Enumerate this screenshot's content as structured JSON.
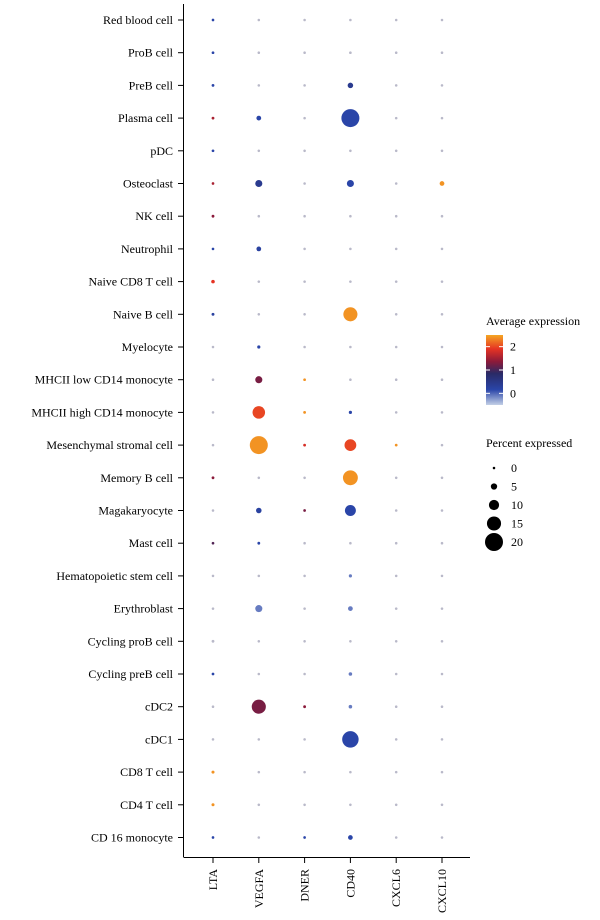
{
  "chart_data": {
    "type": "dotplot",
    "genes": [
      "LTA",
      "VEGFA",
      "DNER",
      "CD40",
      "CXCL6",
      "CXCL10"
    ],
    "cell_types": [
      "Red blood cell",
      "ProB cell",
      "PreB cell",
      "Plasma cell",
      "pDC",
      "Osteoclast",
      "NK cell",
      "Neutrophil",
      "Naive CD8 T cell",
      "Naive B cell",
      "Myelocyte",
      "MHCII low CD14 monocyte",
      "MHCII high CD14 monocyte",
      "Mesenchymal stromal cell",
      "Memory B cell",
      "Magakaryocyte",
      "Mast cell",
      "Hematopoietic stem cell",
      "Erythroblast",
      "Cycling proB cell",
      "Cycling preB cell",
      "cDC2",
      "cDC1",
      "CD8 T cell",
      "CD4 T cell",
      "CD 16 monocyte"
    ],
    "points": [
      {
        "cell": "Red blood cell",
        "gene": "LTA",
        "pct": 0.3,
        "avg": 0.0
      },
      {
        "cell": "Red blood cell",
        "gene": "VEGFA",
        "pct": 0.2,
        "avg": -0.3
      },
      {
        "cell": "Red blood cell",
        "gene": "DNER",
        "pct": 0.2,
        "avg": -0.3
      },
      {
        "cell": "Red blood cell",
        "gene": "CD40",
        "pct": 0.2,
        "avg": -0.3
      },
      {
        "cell": "Red blood cell",
        "gene": "CXCL6",
        "pct": 0.2,
        "avg": -0.3
      },
      {
        "cell": "Red blood cell",
        "gene": "CXCL10",
        "pct": 0.2,
        "avg": -0.3
      },
      {
        "cell": "ProB cell",
        "gene": "LTA",
        "pct": 0.4,
        "avg": 0.0
      },
      {
        "cell": "ProB cell",
        "gene": "VEGFA",
        "pct": 0.2,
        "avg": -0.3
      },
      {
        "cell": "ProB cell",
        "gene": "DNER",
        "pct": 0.2,
        "avg": -0.3
      },
      {
        "cell": "ProB cell",
        "gene": "CD40",
        "pct": 0.3,
        "avg": -0.2
      },
      {
        "cell": "ProB cell",
        "gene": "CXCL6",
        "pct": 0.2,
        "avg": -0.3
      },
      {
        "cell": "ProB cell",
        "gene": "CXCL10",
        "pct": 0.2,
        "avg": -0.3
      },
      {
        "cell": "PreB cell",
        "gene": "LTA",
        "pct": 0.5,
        "avg": 0.0
      },
      {
        "cell": "PreB cell",
        "gene": "VEGFA",
        "pct": 0.2,
        "avg": -0.3
      },
      {
        "cell": "PreB cell",
        "gene": "DNER",
        "pct": 0.2,
        "avg": -0.3
      },
      {
        "cell": "PreB cell",
        "gene": "CD40",
        "pct": 4,
        "avg": 0.3
      },
      {
        "cell": "PreB cell",
        "gene": "CXCL6",
        "pct": 0.2,
        "avg": -0.3
      },
      {
        "cell": "PreB cell",
        "gene": "CXCL10",
        "pct": 0.2,
        "avg": -0.3
      },
      {
        "cell": "Plasma cell",
        "gene": "LTA",
        "pct": 0.5,
        "avg": 1.5
      },
      {
        "cell": "Plasma cell",
        "gene": "VEGFA",
        "pct": 3,
        "avg": 0.0
      },
      {
        "cell": "Plasma cell",
        "gene": "DNER",
        "pct": 0.2,
        "avg": -0.3
      },
      {
        "cell": "Plasma cell",
        "gene": "CD40",
        "pct": 20,
        "avg": 0.0
      },
      {
        "cell": "Plasma cell",
        "gene": "CXCL6",
        "pct": 0.2,
        "avg": -0.3
      },
      {
        "cell": "Plasma cell",
        "gene": "CXCL10",
        "pct": 0.2,
        "avg": -0.3
      },
      {
        "cell": "pDC",
        "gene": "LTA",
        "pct": 0.4,
        "avg": 0.0
      },
      {
        "cell": "pDC",
        "gene": "VEGFA",
        "pct": 0.2,
        "avg": -0.3
      },
      {
        "cell": "pDC",
        "gene": "DNER",
        "pct": 0.2,
        "avg": -0.3
      },
      {
        "cell": "pDC",
        "gene": "CD40",
        "pct": 0.2,
        "avg": -0.3
      },
      {
        "cell": "pDC",
        "gene": "CXCL6",
        "pct": 0.2,
        "avg": -0.3
      },
      {
        "cell": "pDC",
        "gene": "CXCL10",
        "pct": 0.2,
        "avg": -0.3
      },
      {
        "cell": "Osteoclast",
        "gene": "LTA",
        "pct": 0.3,
        "avg": 1.5
      },
      {
        "cell": "Osteoclast",
        "gene": "VEGFA",
        "pct": 6,
        "avg": 0.3
      },
      {
        "cell": "Osteoclast",
        "gene": "DNER",
        "pct": 0.2,
        "avg": -0.3
      },
      {
        "cell": "Osteoclast",
        "gene": "CD40",
        "pct": 6,
        "avg": 0.0
      },
      {
        "cell": "Osteoclast",
        "gene": "CXCL6",
        "pct": 0.2,
        "avg": -0.3
      },
      {
        "cell": "Osteoclast",
        "gene": "CXCL10",
        "pct": 3,
        "avg": 2.4
      },
      {
        "cell": "NK cell",
        "gene": "LTA",
        "pct": 0.5,
        "avg": 1.3
      },
      {
        "cell": "NK cell",
        "gene": "VEGFA",
        "pct": 0.2,
        "avg": -0.3
      },
      {
        "cell": "NK cell",
        "gene": "DNER",
        "pct": 0.2,
        "avg": -0.3
      },
      {
        "cell": "NK cell",
        "gene": "CD40",
        "pct": 0.2,
        "avg": -0.3
      },
      {
        "cell": "NK cell",
        "gene": "CXCL6",
        "pct": 0.2,
        "avg": -0.3
      },
      {
        "cell": "NK cell",
        "gene": "CXCL10",
        "pct": 0.2,
        "avg": -0.3
      },
      {
        "cell": "Neutrophil",
        "gene": "LTA",
        "pct": 0.3,
        "avg": 0.0
      },
      {
        "cell": "Neutrophil",
        "gene": "VEGFA",
        "pct": 3,
        "avg": 0.1
      },
      {
        "cell": "Neutrophil",
        "gene": "DNER",
        "pct": 0.2,
        "avg": -0.3
      },
      {
        "cell": "Neutrophil",
        "gene": "CD40",
        "pct": 0.2,
        "avg": -0.3
      },
      {
        "cell": "Neutrophil",
        "gene": "CXCL6",
        "pct": 0.2,
        "avg": -0.3
      },
      {
        "cell": "Neutrophil",
        "gene": "CXCL10",
        "pct": 0.2,
        "avg": -0.3
      },
      {
        "cell": "Naive CD8 T cell",
        "gene": "LTA",
        "pct": 1.5,
        "avg": 1.9
      },
      {
        "cell": "Naive CD8 T cell",
        "gene": "VEGFA",
        "pct": 0.2,
        "avg": -0.3
      },
      {
        "cell": "Naive CD8 T cell",
        "gene": "DNER",
        "pct": 0.2,
        "avg": -0.3
      },
      {
        "cell": "Naive CD8 T cell",
        "gene": "CD40",
        "pct": 0.2,
        "avg": -0.3
      },
      {
        "cell": "Naive CD8 T cell",
        "gene": "CXCL6",
        "pct": 0.2,
        "avg": -0.3
      },
      {
        "cell": "Naive CD8 T cell",
        "gene": "CXCL10",
        "pct": 0.2,
        "avg": -0.3
      },
      {
        "cell": "Naive B cell",
        "gene": "LTA",
        "pct": 0.7,
        "avg": 0.1
      },
      {
        "cell": "Naive B cell",
        "gene": "VEGFA",
        "pct": 0.2,
        "avg": -0.3
      },
      {
        "cell": "Naive B cell",
        "gene": "DNER",
        "pct": 0.2,
        "avg": -0.3
      },
      {
        "cell": "Naive B cell",
        "gene": "CD40",
        "pct": 15,
        "avg": 2.4
      },
      {
        "cell": "Naive B cell",
        "gene": "CXCL6",
        "pct": 0.2,
        "avg": -0.3
      },
      {
        "cell": "Naive B cell",
        "gene": "CXCL10",
        "pct": 0.2,
        "avg": -0.3
      },
      {
        "cell": "Myelocyte",
        "gene": "LTA",
        "pct": 0.2,
        "avg": -0.3
      },
      {
        "cell": "Myelocyte",
        "gene": "VEGFA",
        "pct": 1,
        "avg": 0.0
      },
      {
        "cell": "Myelocyte",
        "gene": "DNER",
        "pct": 0.2,
        "avg": -0.3
      },
      {
        "cell": "Myelocyte",
        "gene": "CD40",
        "pct": 0.2,
        "avg": -0.3
      },
      {
        "cell": "Myelocyte",
        "gene": "CXCL6",
        "pct": 0.2,
        "avg": -0.3
      },
      {
        "cell": "Myelocyte",
        "gene": "CXCL10",
        "pct": 0.2,
        "avg": -0.3
      },
      {
        "cell": "MHCII low CD14 monocyte",
        "gene": "LTA",
        "pct": 0.2,
        "avg": -0.3
      },
      {
        "cell": "MHCII low CD14 monocyte",
        "gene": "VEGFA",
        "pct": 6,
        "avg": 1.2
      },
      {
        "cell": "MHCII low CD14 monocyte",
        "gene": "DNER",
        "pct": 0.4,
        "avg": 2.4
      },
      {
        "cell": "MHCII low CD14 monocyte",
        "gene": "CD40",
        "pct": 0.2,
        "avg": -0.3
      },
      {
        "cell": "MHCII low CD14 monocyte",
        "gene": "CXCL6",
        "pct": 0.2,
        "avg": -0.3
      },
      {
        "cell": "MHCII low CD14 monocyte",
        "gene": "CXCL10",
        "pct": 0.2,
        "avg": -0.3
      },
      {
        "cell": "MHCII high CD14 monocyte",
        "gene": "LTA",
        "pct": 0.2,
        "avg": -0.3
      },
      {
        "cell": "MHCII high CD14 monocyte",
        "gene": "VEGFA",
        "pct": 13,
        "avg": 2.0
      },
      {
        "cell": "MHCII high CD14 monocyte",
        "gene": "DNER",
        "pct": 0.5,
        "avg": 2.4
      },
      {
        "cell": "MHCII high CD14 monocyte",
        "gene": "CD40",
        "pct": 1,
        "avg": 0.0
      },
      {
        "cell": "MHCII high CD14 monocyte",
        "gene": "CXCL6",
        "pct": 0.2,
        "avg": -0.3
      },
      {
        "cell": "MHCII high CD14 monocyte",
        "gene": "CXCL10",
        "pct": 0.2,
        "avg": -0.3
      },
      {
        "cell": "Mesenchymal stromal cell",
        "gene": "LTA",
        "pct": 0.2,
        "avg": -0.3
      },
      {
        "cell": "Mesenchymal stromal cell",
        "gene": "VEGFA",
        "pct": 20,
        "avg": 2.4
      },
      {
        "cell": "Mesenchymal stromal cell",
        "gene": "DNER",
        "pct": 0.5,
        "avg": 1.8
      },
      {
        "cell": "Mesenchymal stromal cell",
        "gene": "CD40",
        "pct": 12,
        "avg": 2.0
      },
      {
        "cell": "Mesenchymal stromal cell",
        "gene": "CXCL6",
        "pct": 0.4,
        "avg": 2.4
      },
      {
        "cell": "Mesenchymal stromal cell",
        "gene": "CXCL10",
        "pct": 0.2,
        "avg": -0.3
      },
      {
        "cell": "Memory B cell",
        "gene": "LTA",
        "pct": 0.5,
        "avg": 1.3
      },
      {
        "cell": "Memory B cell",
        "gene": "VEGFA",
        "pct": 0.2,
        "avg": -0.3
      },
      {
        "cell": "Memory B cell",
        "gene": "DNER",
        "pct": 0.2,
        "avg": -0.3
      },
      {
        "cell": "Memory B cell",
        "gene": "CD40",
        "pct": 16,
        "avg": 2.4
      },
      {
        "cell": "Memory B cell",
        "gene": "CXCL6",
        "pct": 0.2,
        "avg": -0.3
      },
      {
        "cell": "Memory B cell",
        "gene": "CXCL10",
        "pct": 0.2,
        "avg": -0.3
      },
      {
        "cell": "Magakaryocyte",
        "gene": "LTA",
        "pct": 0.2,
        "avg": -0.3
      },
      {
        "cell": "Magakaryocyte",
        "gene": "VEGFA",
        "pct": 4,
        "avg": 0.1
      },
      {
        "cell": "Magakaryocyte",
        "gene": "DNER",
        "pct": 0.4,
        "avg": 1.2
      },
      {
        "cell": "Magakaryocyte",
        "gene": "CD40",
        "pct": 11,
        "avg": 0.0
      },
      {
        "cell": "Magakaryocyte",
        "gene": "CXCL6",
        "pct": 0.2,
        "avg": -0.3
      },
      {
        "cell": "Magakaryocyte",
        "gene": "CXCL10",
        "pct": 0.2,
        "avg": -0.3
      },
      {
        "cell": "Mast cell",
        "gene": "LTA",
        "pct": 0.3,
        "avg": 1.0
      },
      {
        "cell": "Mast cell",
        "gene": "VEGFA",
        "pct": 0.5,
        "avg": 0.0
      },
      {
        "cell": "Mast cell",
        "gene": "DNER",
        "pct": 0.2,
        "avg": -0.3
      },
      {
        "cell": "Mast cell",
        "gene": "CD40",
        "pct": 0.2,
        "avg": -0.3
      },
      {
        "cell": "Mast cell",
        "gene": "CXCL6",
        "pct": 0.2,
        "avg": -0.3
      },
      {
        "cell": "Mast cell",
        "gene": "CXCL10",
        "pct": 0.2,
        "avg": -0.3
      },
      {
        "cell": "Hematopoietic stem cell",
        "gene": "LTA",
        "pct": 0.2,
        "avg": -0.3
      },
      {
        "cell": "Hematopoietic stem cell",
        "gene": "VEGFA",
        "pct": 0.2,
        "avg": -0.3
      },
      {
        "cell": "Hematopoietic stem cell",
        "gene": "DNER",
        "pct": 0.2,
        "avg": -0.3
      },
      {
        "cell": "Hematopoietic stem cell",
        "gene": "CD40",
        "pct": 1,
        "avg": -0.2
      },
      {
        "cell": "Hematopoietic stem cell",
        "gene": "CXCL6",
        "pct": 0.2,
        "avg": -0.3
      },
      {
        "cell": "Hematopoietic stem cell",
        "gene": "CXCL10",
        "pct": 0.2,
        "avg": -0.3
      },
      {
        "cell": "Erythroblast",
        "gene": "LTA",
        "pct": 0.2,
        "avg": -0.3
      },
      {
        "cell": "Erythroblast",
        "gene": "VEGFA",
        "pct": 6,
        "avg": -0.2
      },
      {
        "cell": "Erythroblast",
        "gene": "DNER",
        "pct": 0.2,
        "avg": -0.3
      },
      {
        "cell": "Erythroblast",
        "gene": "CD40",
        "pct": 3,
        "avg": -0.2
      },
      {
        "cell": "Erythroblast",
        "gene": "CXCL6",
        "pct": 0.2,
        "avg": -0.3
      },
      {
        "cell": "Erythroblast",
        "gene": "CXCL10",
        "pct": 0.2,
        "avg": -0.3
      },
      {
        "cell": "Cycling proB cell",
        "gene": "LTA",
        "pct": 0.5,
        "avg": -0.2
      },
      {
        "cell": "Cycling proB cell",
        "gene": "VEGFA",
        "pct": 0.2,
        "avg": -0.3
      },
      {
        "cell": "Cycling proB cell",
        "gene": "DNER",
        "pct": 0.2,
        "avg": -0.3
      },
      {
        "cell": "Cycling proB cell",
        "gene": "CD40",
        "pct": 0.2,
        "avg": -0.3
      },
      {
        "cell": "Cycling proB cell",
        "gene": "CXCL6",
        "pct": 0.2,
        "avg": -0.3
      },
      {
        "cell": "Cycling proB cell",
        "gene": "CXCL10",
        "pct": 0.2,
        "avg": -0.3
      },
      {
        "cell": "Cycling preB cell",
        "gene": "LTA",
        "pct": 0.4,
        "avg": 0.0
      },
      {
        "cell": "Cycling preB cell",
        "gene": "VEGFA",
        "pct": 0.2,
        "avg": -0.3
      },
      {
        "cell": "Cycling preB cell",
        "gene": "DNER",
        "pct": 0.2,
        "avg": -0.3
      },
      {
        "cell": "Cycling preB cell",
        "gene": "CD40",
        "pct": 1.5,
        "avg": -0.2
      },
      {
        "cell": "Cycling preB cell",
        "gene": "CXCL6",
        "pct": 0.2,
        "avg": -0.3
      },
      {
        "cell": "Cycling preB cell",
        "gene": "CXCL10",
        "pct": 0.2,
        "avg": -0.3
      },
      {
        "cell": "cDC2",
        "gene": "LTA",
        "pct": 0.2,
        "avg": -0.3
      },
      {
        "cell": "cDC2",
        "gene": "VEGFA",
        "pct": 15,
        "avg": 1.2
      },
      {
        "cell": "cDC2",
        "gene": "DNER",
        "pct": 0.5,
        "avg": 1.3
      },
      {
        "cell": "cDC2",
        "gene": "CD40",
        "pct": 1.5,
        "avg": -0.2
      },
      {
        "cell": "cDC2",
        "gene": "CXCL6",
        "pct": 0.2,
        "avg": -0.3
      },
      {
        "cell": "cDC2",
        "gene": "CXCL10",
        "pct": 0.2,
        "avg": -0.3
      },
      {
        "cell": "cDC1",
        "gene": "LTA",
        "pct": 0.2,
        "avg": -0.3
      },
      {
        "cell": "cDC1",
        "gene": "VEGFA",
        "pct": 0.2,
        "avg": -0.3
      },
      {
        "cell": "cDC1",
        "gene": "DNER",
        "pct": 0.2,
        "avg": -0.3
      },
      {
        "cell": "cDC1",
        "gene": "CD40",
        "pct": 18,
        "avg": 0.0
      },
      {
        "cell": "cDC1",
        "gene": "CXCL6",
        "pct": 0.2,
        "avg": -0.3
      },
      {
        "cell": "cDC1",
        "gene": "CXCL10",
        "pct": 0.2,
        "avg": -0.3
      },
      {
        "cell": "CD8 T cell",
        "gene": "LTA",
        "pct": 0.8,
        "avg": 2.4
      },
      {
        "cell": "CD8 T cell",
        "gene": "VEGFA",
        "pct": 0.2,
        "avg": -0.3
      },
      {
        "cell": "CD8 T cell",
        "gene": "DNER",
        "pct": 0.2,
        "avg": -0.3
      },
      {
        "cell": "CD8 T cell",
        "gene": "CD40",
        "pct": 0.2,
        "avg": -0.3
      },
      {
        "cell": "CD8 T cell",
        "gene": "CXCL6",
        "pct": 0.2,
        "avg": -0.3
      },
      {
        "cell": "CD8 T cell",
        "gene": "CXCL10",
        "pct": 0.2,
        "avg": -0.3
      },
      {
        "cell": "CD4 T cell",
        "gene": "LTA",
        "pct": 0.8,
        "avg": 2.4
      },
      {
        "cell": "CD4 T cell",
        "gene": "VEGFA",
        "pct": 0.2,
        "avg": -0.3
      },
      {
        "cell": "CD4 T cell",
        "gene": "DNER",
        "pct": 0.2,
        "avg": -0.3
      },
      {
        "cell": "CD4 T cell",
        "gene": "CD40",
        "pct": 0.2,
        "avg": -0.3
      },
      {
        "cell": "CD4 T cell",
        "gene": "CXCL6",
        "pct": 0.2,
        "avg": -0.3
      },
      {
        "cell": "CD4 T cell",
        "gene": "CXCL10",
        "pct": 0.2,
        "avg": -0.3
      },
      {
        "cell": "CD 16 monocyte",
        "gene": "LTA",
        "pct": 0.3,
        "avg": 0.0
      },
      {
        "cell": "CD 16 monocyte",
        "gene": "VEGFA",
        "pct": 0.2,
        "avg": -0.3
      },
      {
        "cell": "CD 16 monocyte",
        "gene": "DNER",
        "pct": 0.3,
        "avg": 0.0
      },
      {
        "cell": "CD 16 monocyte",
        "gene": "CD40",
        "pct": 3,
        "avg": 0.0
      },
      {
        "cell": "CD 16 monocyte",
        "gene": "CXCL6",
        "pct": 0.2,
        "avg": -0.3
      },
      {
        "cell": "CD 16 monocyte",
        "gene": "CXCL10",
        "pct": 0.2,
        "avg": -0.3
      }
    ],
    "color_legend": {
      "title": "Average expression",
      "ticks": [
        2,
        1,
        0
      ],
      "range": [
        -0.5,
        2.5
      ],
      "colors": [
        "#b8c6e0",
        "#2a45a8",
        "#2a2a66",
        "#8b1a3a",
        "#e53323",
        "#f5a623"
      ]
    },
    "size_legend": {
      "title": "Percent expressed",
      "values": [
        0,
        5,
        10,
        15,
        20
      ]
    }
  }
}
